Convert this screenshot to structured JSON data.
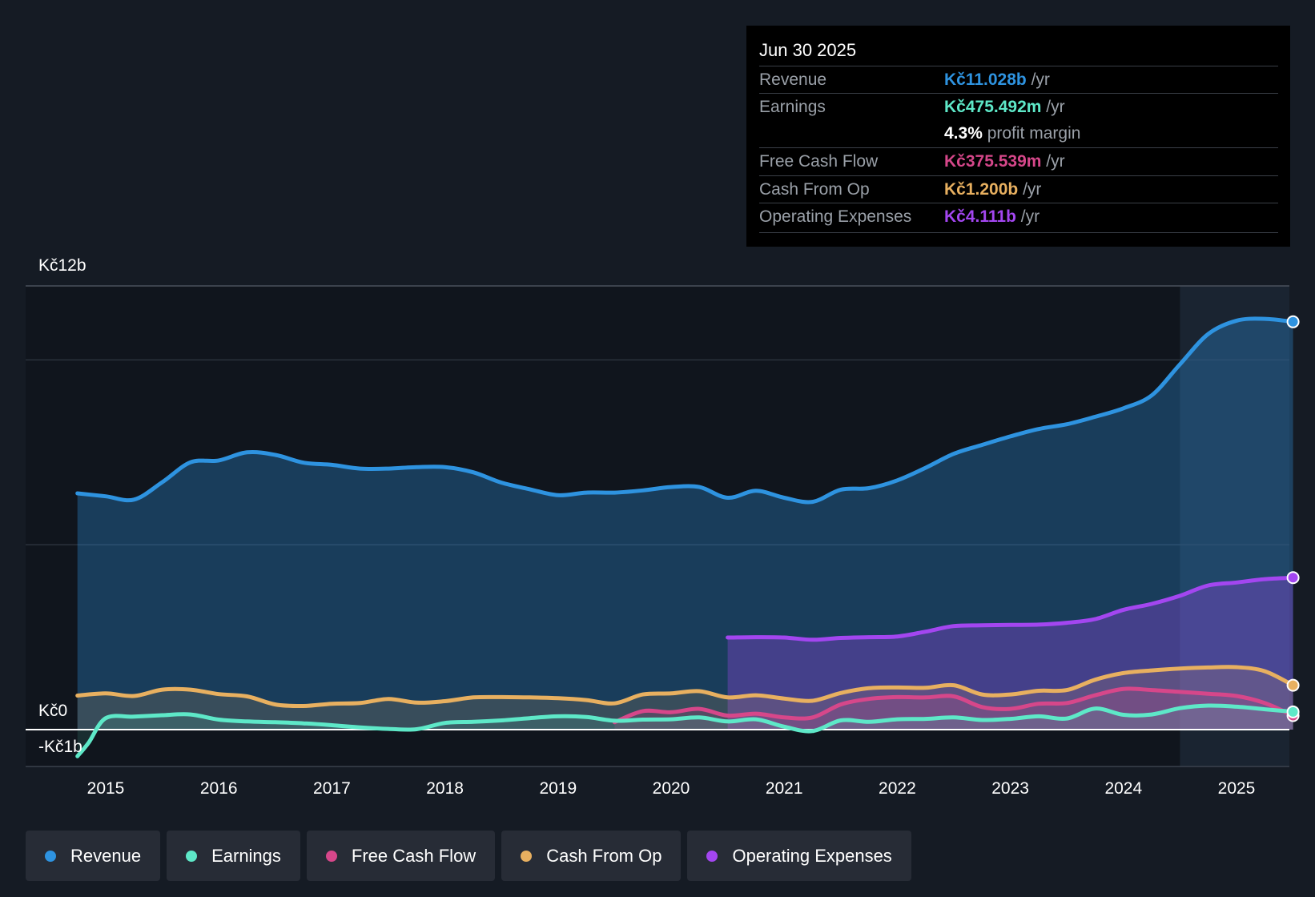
{
  "tooltip": {
    "date": "Jun 30 2025",
    "rows": [
      {
        "label": "Revenue",
        "value": "Kč11.028b",
        "unit": " /yr",
        "color": "#2e93e0"
      },
      {
        "label": "Earnings",
        "value": "Kč475.492m",
        "unit": " /yr",
        "color": "#5ee8c8"
      },
      {
        "label": "",
        "value": "4.3%",
        "unit": " profit margin",
        "color": "#ffffff"
      },
      {
        "label": "Free Cash Flow",
        "value": "Kč375.539m",
        "unit": " /yr",
        "color": "#d6478a"
      },
      {
        "label": "Cash From Op",
        "value": "Kč1.200b",
        "unit": " /yr",
        "color": "#e8b060"
      },
      {
        "label": "Operating Expenses",
        "value": "Kč4.111b",
        "unit": " /yr",
        "color": "#a346f0"
      }
    ]
  },
  "legend": [
    {
      "label": "Revenue",
      "color": "#2e93e0"
    },
    {
      "label": "Earnings",
      "color": "#5ee8c8"
    },
    {
      "label": "Free Cash Flow",
      "color": "#d6478a"
    },
    {
      "label": "Cash From Op",
      "color": "#e8b060"
    },
    {
      "label": "Operating Expenses",
      "color": "#a346f0"
    }
  ],
  "chart_data": {
    "type": "area",
    "title": "",
    "xlabel": "",
    "ylabel": "",
    "y_top_label": "Kč12b",
    "y_zero_label": "Kč0",
    "y_bottom_label": "-Kč1b",
    "ylim": [
      -1,
      12
    ],
    "xlim": [
      2014.75,
      2025.5
    ],
    "x_ticks": [
      2015,
      2016,
      2017,
      2018,
      2019,
      2020,
      2021,
      2022,
      2023,
      2024,
      2025
    ],
    "x_tick_labels": [
      "2015",
      "2016",
      "2017",
      "2018",
      "2019",
      "2020",
      "2021",
      "2022",
      "2023",
      "2024",
      "2025"
    ],
    "highlight_from": 2024.5,
    "series": [
      {
        "name": "Revenue",
        "color": "#2e93e0",
        "unit": "Kč b",
        "x": [
          2014.75,
          2015.0,
          2015.25,
          2015.5,
          2015.75,
          2016.0,
          2016.25,
          2016.5,
          2016.75,
          2017.0,
          2017.25,
          2017.5,
          2017.75,
          2018.0,
          2018.25,
          2018.5,
          2018.75,
          2019.0,
          2019.25,
          2019.5,
          2019.75,
          2020.0,
          2020.25,
          2020.5,
          2020.75,
          2021.0,
          2021.25,
          2021.5,
          2021.75,
          2022.0,
          2022.25,
          2022.5,
          2022.75,
          2023.0,
          2023.25,
          2023.5,
          2023.75,
          2024.0,
          2024.25,
          2024.5,
          2024.75,
          2025.0,
          2025.25,
          2025.5
        ],
        "values": [
          6.39,
          6.31,
          6.22,
          6.69,
          7.23,
          7.28,
          7.5,
          7.43,
          7.22,
          7.16,
          7.06,
          7.06,
          7.1,
          7.1,
          6.96,
          6.68,
          6.5,
          6.34,
          6.41,
          6.41,
          6.47,
          6.56,
          6.56,
          6.27,
          6.46,
          6.27,
          6.16,
          6.49,
          6.53,
          6.74,
          7.08,
          7.46,
          7.7,
          7.93,
          8.13,
          8.26,
          8.46,
          8.69,
          9.04,
          9.88,
          10.7,
          11.06,
          11.11,
          11.03
        ]
      },
      {
        "name": "Earnings",
        "color": "#5ee8c8",
        "unit": "Kč b",
        "x": [
          2014.75,
          2014.85,
          2015.0,
          2015.25,
          2015.5,
          2015.75,
          2016.0,
          2016.25,
          2016.5,
          2016.75,
          2017.0,
          2017.25,
          2017.5,
          2017.75,
          2018.0,
          2018.25,
          2018.5,
          2018.75,
          2019.0,
          2019.25,
          2019.5,
          2019.75,
          2020.0,
          2020.25,
          2020.5,
          2020.75,
          2021.0,
          2021.25,
          2021.5,
          2021.75,
          2022.0,
          2022.25,
          2022.5,
          2022.75,
          2023.0,
          2023.25,
          2023.5,
          2023.75,
          2024.0,
          2024.25,
          2024.5,
          2024.75,
          2025.0,
          2025.25,
          2025.5
        ],
        "values": [
          -0.72,
          -0.35,
          0.31,
          0.35,
          0.39,
          0.41,
          0.27,
          0.22,
          0.2,
          0.17,
          0.12,
          0.06,
          0.02,
          0.01,
          0.18,
          0.21,
          0.25,
          0.31,
          0.36,
          0.34,
          0.24,
          0.27,
          0.28,
          0.33,
          0.22,
          0.28,
          0.08,
          -0.04,
          0.25,
          0.21,
          0.28,
          0.29,
          0.33,
          0.26,
          0.29,
          0.36,
          0.3,
          0.57,
          0.4,
          0.41,
          0.58,
          0.65,
          0.62,
          0.55,
          0.48
        ]
      },
      {
        "name": "Free Cash Flow",
        "color": "#d6478a",
        "unit": "Kč b",
        "x": [
          2019.5,
          2019.75,
          2020.0,
          2020.25,
          2020.5,
          2020.75,
          2021.0,
          2021.25,
          2021.5,
          2021.75,
          2022.0,
          2022.25,
          2022.5,
          2022.75,
          2023.0,
          2023.25,
          2023.5,
          2023.75,
          2024.0,
          2024.25,
          2024.5,
          2024.75,
          2025.0,
          2025.25,
          2025.5
        ],
        "values": [
          0.2,
          0.5,
          0.47,
          0.56,
          0.38,
          0.43,
          0.33,
          0.33,
          0.68,
          0.83,
          0.88,
          0.87,
          0.9,
          0.61,
          0.56,
          0.7,
          0.72,
          0.93,
          1.1,
          1.07,
          1.02,
          0.97,
          0.91,
          0.72,
          0.38
        ]
      },
      {
        "name": "Cash From Op",
        "color": "#e8b060",
        "unit": "Kč b",
        "x": [
          2014.75,
          2015.0,
          2015.25,
          2015.5,
          2015.75,
          2016.0,
          2016.25,
          2016.5,
          2016.75,
          2017.0,
          2017.25,
          2017.5,
          2017.75,
          2018.0,
          2018.25,
          2018.5,
          2018.75,
          2019.0,
          2019.25,
          2019.5,
          2019.75,
          2020.0,
          2020.25,
          2020.5,
          2020.75,
          2021.0,
          2021.25,
          2021.5,
          2021.75,
          2022.0,
          2022.25,
          2022.5,
          2022.75,
          2023.0,
          2023.25,
          2023.5,
          2023.75,
          2024.0,
          2024.25,
          2024.5,
          2024.75,
          2025.0,
          2025.25,
          2025.5
        ],
        "values": [
          0.92,
          0.98,
          0.91,
          1.08,
          1.08,
          0.96,
          0.9,
          0.68,
          0.64,
          0.7,
          0.72,
          0.83,
          0.73,
          0.77,
          0.87,
          0.88,
          0.87,
          0.85,
          0.8,
          0.71,
          0.95,
          0.98,
          1.04,
          0.87,
          0.93,
          0.84,
          0.78,
          0.99,
          1.12,
          1.14,
          1.13,
          1.2,
          0.95,
          0.95,
          1.05,
          1.07,
          1.35,
          1.53,
          1.6,
          1.65,
          1.68,
          1.69,
          1.58,
          1.2
        ]
      },
      {
        "name": "Operating Expenses",
        "color": "#a346f0",
        "unit": "Kč b",
        "x": [
          2020.5,
          2020.75,
          2021.0,
          2021.25,
          2021.5,
          2021.75,
          2022.0,
          2022.25,
          2022.5,
          2022.75,
          2023.0,
          2023.25,
          2023.5,
          2023.75,
          2024.0,
          2024.25,
          2024.5,
          2024.75,
          2025.0,
          2025.25,
          2025.5
        ],
        "values": [
          2.49,
          2.5,
          2.49,
          2.43,
          2.48,
          2.5,
          2.52,
          2.65,
          2.8,
          2.82,
          2.83,
          2.84,
          2.89,
          2.99,
          3.24,
          3.4,
          3.62,
          3.9,
          3.98,
          4.07,
          4.11
        ]
      }
    ]
  }
}
